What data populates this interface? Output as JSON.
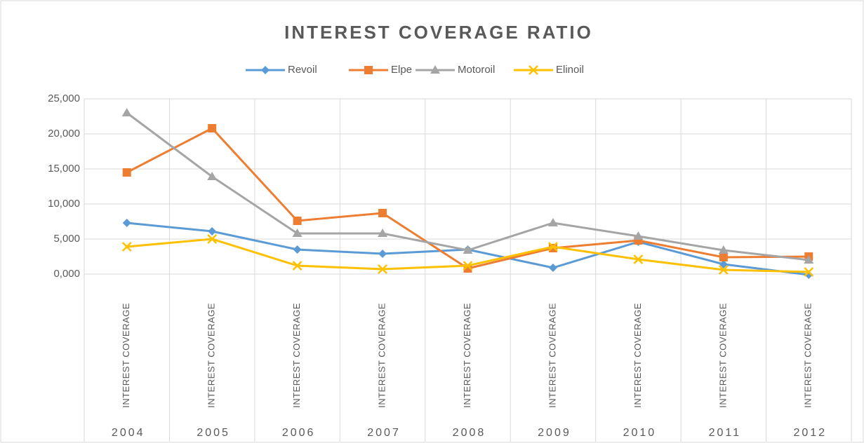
{
  "chart_data": {
    "type": "line",
    "title": "INTEREST COVERAGE RATIO",
    "categories": [
      "2004",
      "2005",
      "2006",
      "2007",
      "2008",
      "2009",
      "2010",
      "2011",
      "2012"
    ],
    "category_sublabels": [
      "INTEREST COVERAGE",
      "INTEREST COVERAGE",
      "INTEREST COVERAGE",
      "INTEREST COVERAGE",
      "INTEREST COVERAGE",
      "INTEREST COVERAGE",
      "INTEREST COVERAGE",
      "INTEREST COVERAGE",
      "INTEREST COVERAGE"
    ],
    "series": [
      {
        "name": "Revoil",
        "color": "#5b9bd5",
        "marker": "diamond",
        "values": [
          7.3,
          6.1,
          3.5,
          2.9,
          3.5,
          0.9,
          4.6,
          1.4,
          -0.1
        ]
      },
      {
        "name": "Elpe",
        "color": "#ed7d31",
        "marker": "square",
        "values": [
          14.5,
          20.8,
          7.6,
          8.7,
          0.8,
          3.7,
          4.8,
          2.4,
          2.5
        ]
      },
      {
        "name": "Motoroil",
        "color": "#a5a5a5",
        "marker": "triangle",
        "values": [
          23.0,
          13.9,
          5.8,
          5.8,
          3.4,
          7.3,
          5.4,
          3.4,
          2.0
        ]
      },
      {
        "name": "Elinoil",
        "color": "#ffc000",
        "marker": "x",
        "values": [
          3.9,
          5.0,
          1.2,
          0.7,
          1.2,
          3.9,
          2.1,
          0.6,
          0.3
        ]
      }
    ],
    "ylim": [
      0,
      25
    ],
    "yticks": [
      {
        "value": 0,
        "label": "0,000"
      },
      {
        "value": 5,
        "label": "5,000"
      },
      {
        "value": 10,
        "label": "10,000"
      },
      {
        "value": 15,
        "label": "15,000"
      },
      {
        "value": 20,
        "label": "20,000"
      },
      {
        "value": 25,
        "label": "25,000"
      }
    ],
    "grid": true,
    "legend": "top"
  }
}
